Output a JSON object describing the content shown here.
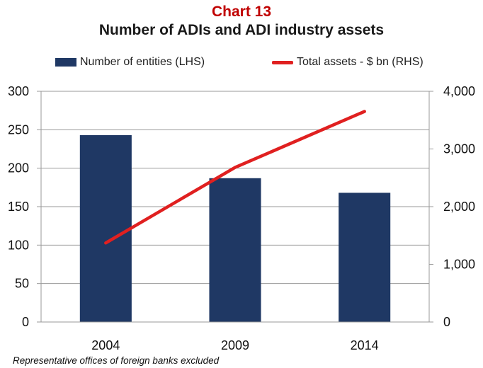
{
  "colors": {
    "title_red": "#c00000",
    "bar": "#1f3864",
    "line": "#e02020",
    "grid": "#999999"
  },
  "chart_data": {
    "type": "bar",
    "title": "Chart 13",
    "subtitle": "Number of ADIs and ADI  industry assets",
    "categories": [
      "2004",
      "2009",
      "2014"
    ],
    "series": [
      {
        "name": "Number of entities (LHS)",
        "type": "bar",
        "axis": "left",
        "values": [
          243,
          187,
          168
        ]
      },
      {
        "name": "Total assets - $ bn (RHS)",
        "type": "line",
        "axis": "right",
        "values": [
          1370,
          2680,
          3650
        ]
      }
    ],
    "y_left": {
      "ylim": [
        0,
        300
      ],
      "ticks": [
        "0",
        "50",
        "100",
        "150",
        "200",
        "250",
        "300"
      ]
    },
    "y_right": {
      "ylim": [
        0,
        4000
      ],
      "ticks": [
        "0",
        "1,000",
        "2,000",
        "3,000",
        "4,000"
      ]
    },
    "grid": true,
    "legend": "top",
    "note": "Representative offices of foreign banks excluded"
  }
}
